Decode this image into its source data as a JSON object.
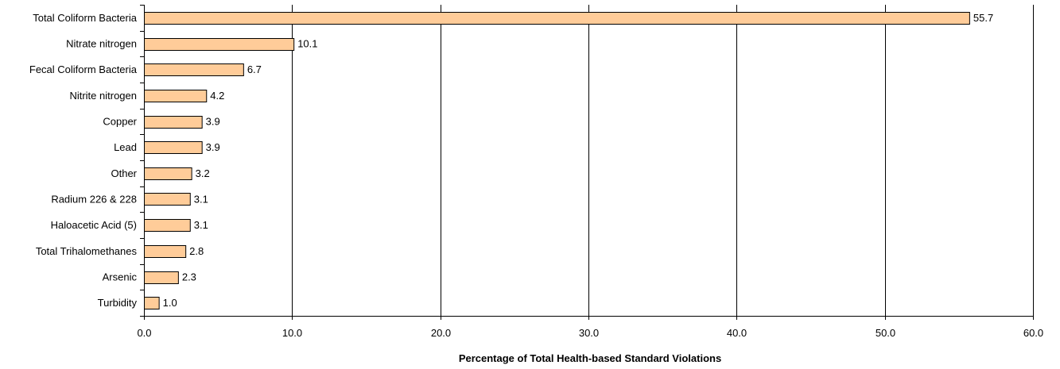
{
  "chart_data": {
    "type": "bar",
    "orientation": "horizontal",
    "categories": [
      "Total Coliform Bacteria",
      "Nitrate nitrogen",
      "Fecal Coliform Bacteria",
      "Nitrite nitrogen",
      "Copper",
      "Lead",
      "Other",
      "Radium 226 & 228",
      "Haloacetic Acid (5)",
      "Total Trihalomethanes",
      "Arsenic",
      "Turbidity"
    ],
    "values": [
      55.7,
      10.1,
      6.7,
      4.2,
      3.9,
      3.9,
      3.2,
      3.1,
      3.1,
      2.8,
      2.3,
      1.0
    ],
    "value_labels": [
      "55.7",
      "10.1",
      "6.7",
      "4.2",
      "3.9",
      "3.9",
      "3.2",
      "3.1",
      "3.1",
      "2.8",
      "2.3",
      "1.0"
    ],
    "xlim": [
      0,
      60
    ],
    "xticks": [
      0,
      10,
      20,
      30,
      40,
      50,
      60
    ],
    "xtick_labels": [
      "0.0",
      "10.0",
      "20.0",
      "30.0",
      "40.0",
      "50.0",
      "60.0"
    ],
    "xlabel": "Percentage of Total Health-based Standard Violations",
    "ylabel": "",
    "title": "",
    "grid": "vertical",
    "legend": "none",
    "colors": {
      "bar_fill": "#FFCC99",
      "bar_stroke": "#000000",
      "grid": "#000000"
    }
  }
}
